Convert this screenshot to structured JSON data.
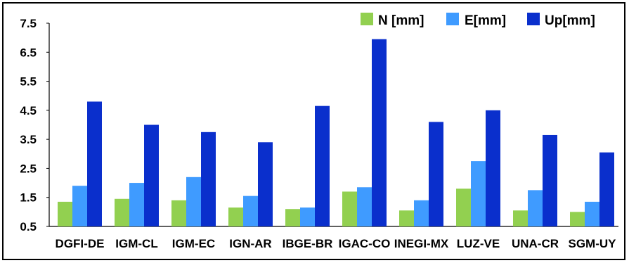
{
  "chart_data": {
    "type": "bar",
    "categories": [
      "DGFI-DE",
      "IGM-CL",
      "IGM-EC",
      "IGN-AR",
      "IBGE-BR",
      "IGAC-CO",
      "INEGI-MX",
      "LUZ-VE",
      "UNA-CR",
      "SGM-UY"
    ],
    "series": [
      {
        "name": "N [mm]",
        "color": "#92d050",
        "values": [
          1.35,
          1.45,
          1.4,
          1.15,
          1.1,
          1.7,
          1.05,
          1.8,
          1.05,
          1.0
        ]
      },
      {
        "name": "E[mm]",
        "color": "#3f9bff",
        "values": [
          1.9,
          2.0,
          2.2,
          1.55,
          1.15,
          1.85,
          1.4,
          2.75,
          1.75,
          1.35
        ]
      },
      {
        "name": "Up[mm]",
        "color": "#0a2fcc",
        "values": [
          4.8,
          4.0,
          3.75,
          3.4,
          4.65,
          6.95,
          4.1,
          4.5,
          3.65,
          3.05
        ]
      }
    ],
    "yticks": [
      "7.5",
      "6.5",
      "5.5",
      "4.5",
      "3.5",
      "2.5",
      "1.5",
      "0.5"
    ],
    "ylim": [
      0.5,
      7.5
    ],
    "legend_position": "top-right",
    "grid": false
  }
}
